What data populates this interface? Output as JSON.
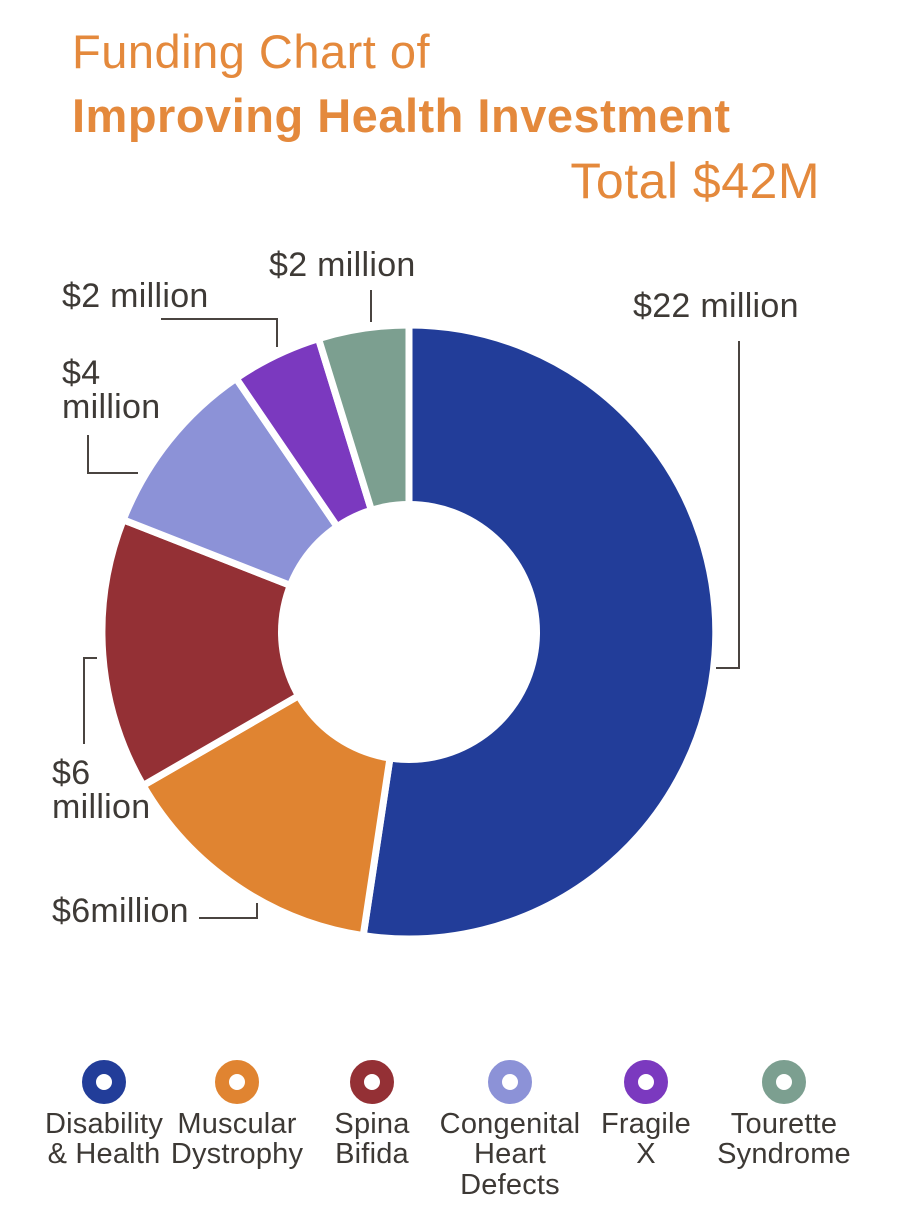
{
  "header": {
    "title_line1": "Funding Chart of",
    "title_line2": "Improving Health Investment",
    "total_label": "Total $42M",
    "accent_color": "#E4893C"
  },
  "chart_data": {
    "type": "pie",
    "subtype": "donut",
    "title": "Funding Chart of Improving Health Investment",
    "total_label": "Total $42M",
    "total": 42,
    "unit": "$ million",
    "start_angle": "12-o-clock",
    "direction": "clockwise",
    "slices": [
      {
        "id": "disability-health",
        "label": "Disability & Health",
        "value": 22,
        "callout": "$22 million",
        "color": "#223D99"
      },
      {
        "id": "muscular-dystrophy",
        "label": "Muscular Dystrophy",
        "value": 6,
        "callout": "$6million",
        "color": "#E08431"
      },
      {
        "id": "spina-bifida",
        "label": "Spina Bifida",
        "value": 6,
        "callout": "$6 million",
        "color": "#943035"
      },
      {
        "id": "congenital-heart-defects",
        "label": "Congenital Heart Defects",
        "value": 4,
        "callout": "$4 million",
        "color": "#8C92D7"
      },
      {
        "id": "fragile-x",
        "label": "Fragile X",
        "value": 2,
        "callout": "$2 million",
        "color": "#7B39BF"
      },
      {
        "id": "tourette-syndrome",
        "label": "Tourette Syndrome",
        "value": 2,
        "callout": "$2 million",
        "color": "#7C9F90"
      }
    ]
  },
  "callouts": {
    "disability": "$22 million",
    "tourette": "$2 million",
    "fragile": "$2 million",
    "congenital": "$4\nmillion",
    "spina": "$6\nmillion",
    "muscular": "$6million"
  },
  "legend": {
    "items": [
      {
        "id": "disability-health",
        "label": "Disability\n& Health",
        "color": "#223D99"
      },
      {
        "id": "muscular-dystrophy",
        "label": "Muscular\nDystrophy",
        "color": "#E08431"
      },
      {
        "id": "spina-bifida",
        "label": "Spina\nBifida",
        "color": "#943035"
      },
      {
        "id": "congenital-heart-defects",
        "label": "Congenital\nHeart\nDefects",
        "color": "#8C92D7"
      },
      {
        "id": "fragile-x",
        "label": "Fragile\nX",
        "color": "#7B39BF"
      },
      {
        "id": "tourette-syndrome",
        "label": "Tourette\nSyndrome",
        "color": "#7C9F90"
      }
    ]
  }
}
